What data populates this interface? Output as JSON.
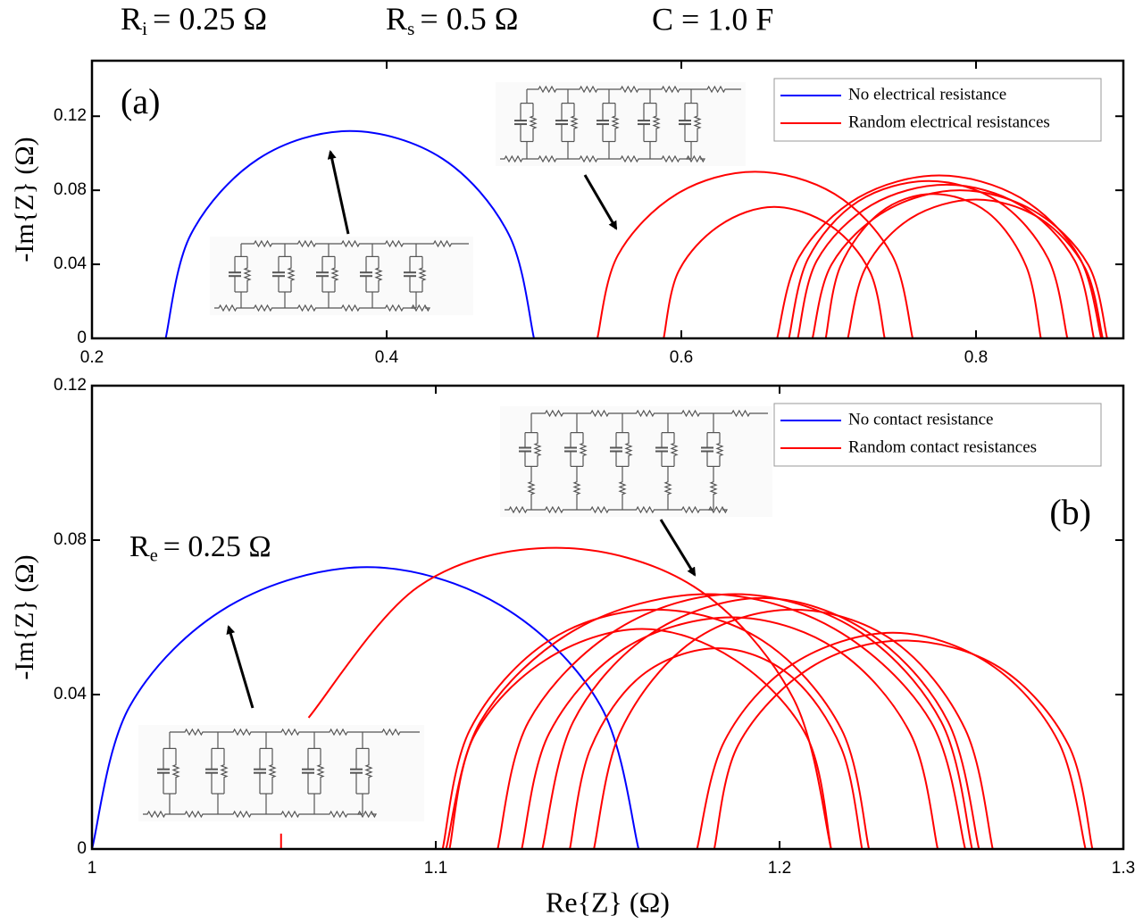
{
  "header": {
    "params": [
      {
        "symbol": "R",
        "subscript": "i",
        "value": "= 0.25 Ω"
      },
      {
        "symbol": "R",
        "subscript": "s",
        "value": "= 0.5 Ω"
      },
      {
        "text": "C = 1.0 F"
      }
    ]
  },
  "chart_data": [
    {
      "type": "line",
      "panel_label": "(a)",
      "y_label": "-Im{Z} (Ω)",
      "xlim": [
        0.2,
        0.9
      ],
      "ylim": [
        0,
        0.15
      ],
      "xticks": [
        0.2,
        0.4,
        0.6,
        0.8
      ],
      "yticks": [
        0,
        0.04,
        0.08,
        0.12
      ],
      "legend_position": "upper right",
      "series": [
        {
          "name": "No electrical resistance",
          "color": "#0000ff",
          "curves": [
            {
              "x": [
                0.25,
                0.267,
                0.313,
                0.375,
                0.438,
                0.483,
                0.5
              ],
              "values": [
                0,
                0.056,
                0.097,
                0.112,
                0.097,
                0.056,
                0
              ]
            }
          ]
        },
        {
          "name": "Random electrical resistances",
          "color": "#ff0000",
          "curves": [
            {
              "x": [
                0.543,
                0.557,
                0.597,
                0.65,
                0.704,
                0.743,
                0.757
              ],
              "values": [
                0,
                0.045,
                0.078,
                0.09,
                0.078,
                0.045,
                0
              ]
            },
            {
              "x": [
                0.588,
                0.598,
                0.626,
                0.663,
                0.701,
                0.728,
                0.738
              ],
              "values": [
                0,
                0.036,
                0.061,
                0.071,
                0.061,
                0.036,
                0
              ]
            },
            {
              "x": [
                0.665,
                0.68,
                0.72,
                0.775,
                0.83,
                0.87,
                0.885
              ],
              "values": [
                0,
                0.044,
                0.076,
                0.088,
                0.076,
                0.044,
                0
              ]
            },
            {
              "x": [
                0.673,
                0.686,
                0.72,
                0.768,
                0.815,
                0.849,
                0.862
              ],
              "values": [
                0,
                0.043,
                0.074,
                0.085,
                0.074,
                0.043,
                0
              ]
            },
            {
              "x": [
                0.679,
                0.692,
                0.729,
                0.78,
                0.83,
                0.867,
                0.88
              ],
              "values": [
                0,
                0.042,
                0.072,
                0.083,
                0.072,
                0.042,
                0
              ]
            },
            {
              "x": [
                0.689,
                0.702,
                0.739,
                0.789,
                0.839,
                0.876,
                0.889
              ],
              "values": [
                0,
                0.04,
                0.069,
                0.08,
                0.069,
                0.04,
                0
              ]
            },
            {
              "x": [
                0.698,
                0.708,
                0.735,
                0.771,
                0.808,
                0.834,
                0.844
              ],
              "values": [
                0,
                0.039,
                0.068,
                0.078,
                0.068,
                0.039,
                0
              ]
            },
            {
              "x": [
                0.713,
                0.725,
                0.756,
                0.8,
                0.843,
                0.874,
                0.886
              ],
              "values": [
                0,
                0.038,
                0.065,
                0.075,
                0.065,
                0.038,
                0
              ]
            }
          ]
        }
      ]
    },
    {
      "type": "line",
      "panel_label": "(b)",
      "y_label": "-Im{Z} (Ω)",
      "x_label": "Re{Z} (Ω)",
      "annotation": {
        "symbol": "R",
        "subscript": "e",
        "value": "= 0.25 Ω"
      },
      "xlim": [
        1,
        1.3
      ],
      "ylim": [
        0,
        0.12
      ],
      "xticks": [
        1,
        1.1,
        1.2,
        1.3
      ],
      "yticks": [
        0,
        0.04,
        0.08,
        0.12
      ],
      "legend_position": "upper right",
      "series": [
        {
          "name": "No contact resistance",
          "color": "#0000ff",
          "curves": [
            {
              "x": [
                1,
                1.011,
                1.04,
                1.08,
                1.119,
                1.148,
                1.159
              ],
              "values": [
                0,
                0.037,
                0.063,
                0.073,
                0.063,
                0.037,
                0
              ]
            }
          ]
        },
        {
          "name": "Random contact resistances",
          "color": "#ff0000",
          "curves": [
            {
              "x": [
                1.055,
                1.055,
                null,
                1.063,
                1.095,
                1.135,
                1.175,
                1.204,
                1.215
              ],
              "values": [
                0,
                0.004,
                null,
                0.034,
                0.068,
                0.078,
                0.068,
                0.039,
                0
              ]
            },
            {
              "x": [
                1.102,
                1.11,
                1.133,
                1.164,
                1.195,
                1.218,
                1.226
              ],
              "values": [
                0,
                0.031,
                0.054,
                0.062,
                0.054,
                0.031,
                0
              ]
            },
            {
              "x": [
                1.103,
                1.113,
                1.141,
                1.179,
                1.216,
                1.244,
                1.254
              ],
              "values": [
                0,
                0.033,
                0.057,
                0.066,
                0.057,
                0.033,
                0
              ]
            },
            {
              "x": [
                1.104,
                1.111,
                1.132,
                1.16,
                1.187,
                1.208,
                1.215
              ],
              "values": [
                0,
                0.029,
                0.049,
                0.057,
                0.049,
                0.029,
                0
              ]
            },
            {
              "x": [
                1.118,
                1.127,
                1.153,
                1.187,
                1.222,
                1.247,
                1.256
              ],
              "values": [
                0,
                0.033,
                0.057,
                0.066,
                0.057,
                0.033,
                0
              ]
            },
            {
              "x": [
                1.125,
                1.133,
                1.155,
                1.186,
                1.216,
                1.238,
                1.246
              ],
              "values": [
                0,
                0.03,
                0.052,
                0.06,
                0.052,
                0.03,
                0
              ]
            },
            {
              "x": [
                1.131,
                1.14,
                1.163,
                1.195,
                1.226,
                1.249,
                1.258
              ],
              "values": [
                0,
                0.033,
                0.056,
                0.065,
                0.056,
                0.033,
                0
              ]
            },
            {
              "x": [
                1.139,
                1.145,
                1.16,
                1.182,
                1.203,
                1.218,
                1.224
              ],
              "values": [
                0,
                0.026,
                0.045,
                0.052,
                0.045,
                0.026,
                0
              ]
            },
            {
              "x": [
                1.146,
                1.154,
                1.175,
                1.204,
                1.233,
                1.254,
                1.262
              ],
              "values": [
                0,
                0.031,
                0.054,
                0.062,
                0.054,
                0.031,
                0
              ]
            },
            {
              "x": [
                1.176,
                1.184,
                1.204,
                1.233,
                1.261,
                1.281,
                1.289
              ],
              "values": [
                0,
                0.028,
                0.048,
                0.056,
                0.048,
                0.028,
                0
              ]
            },
            {
              "x": [
                1.181,
                1.188,
                1.209,
                1.236,
                1.264,
                1.284,
                1.291
              ],
              "values": [
                0,
                0.027,
                0.047,
                0.054,
                0.047,
                0.027,
                0
              ]
            }
          ]
        }
      ]
    }
  ]
}
